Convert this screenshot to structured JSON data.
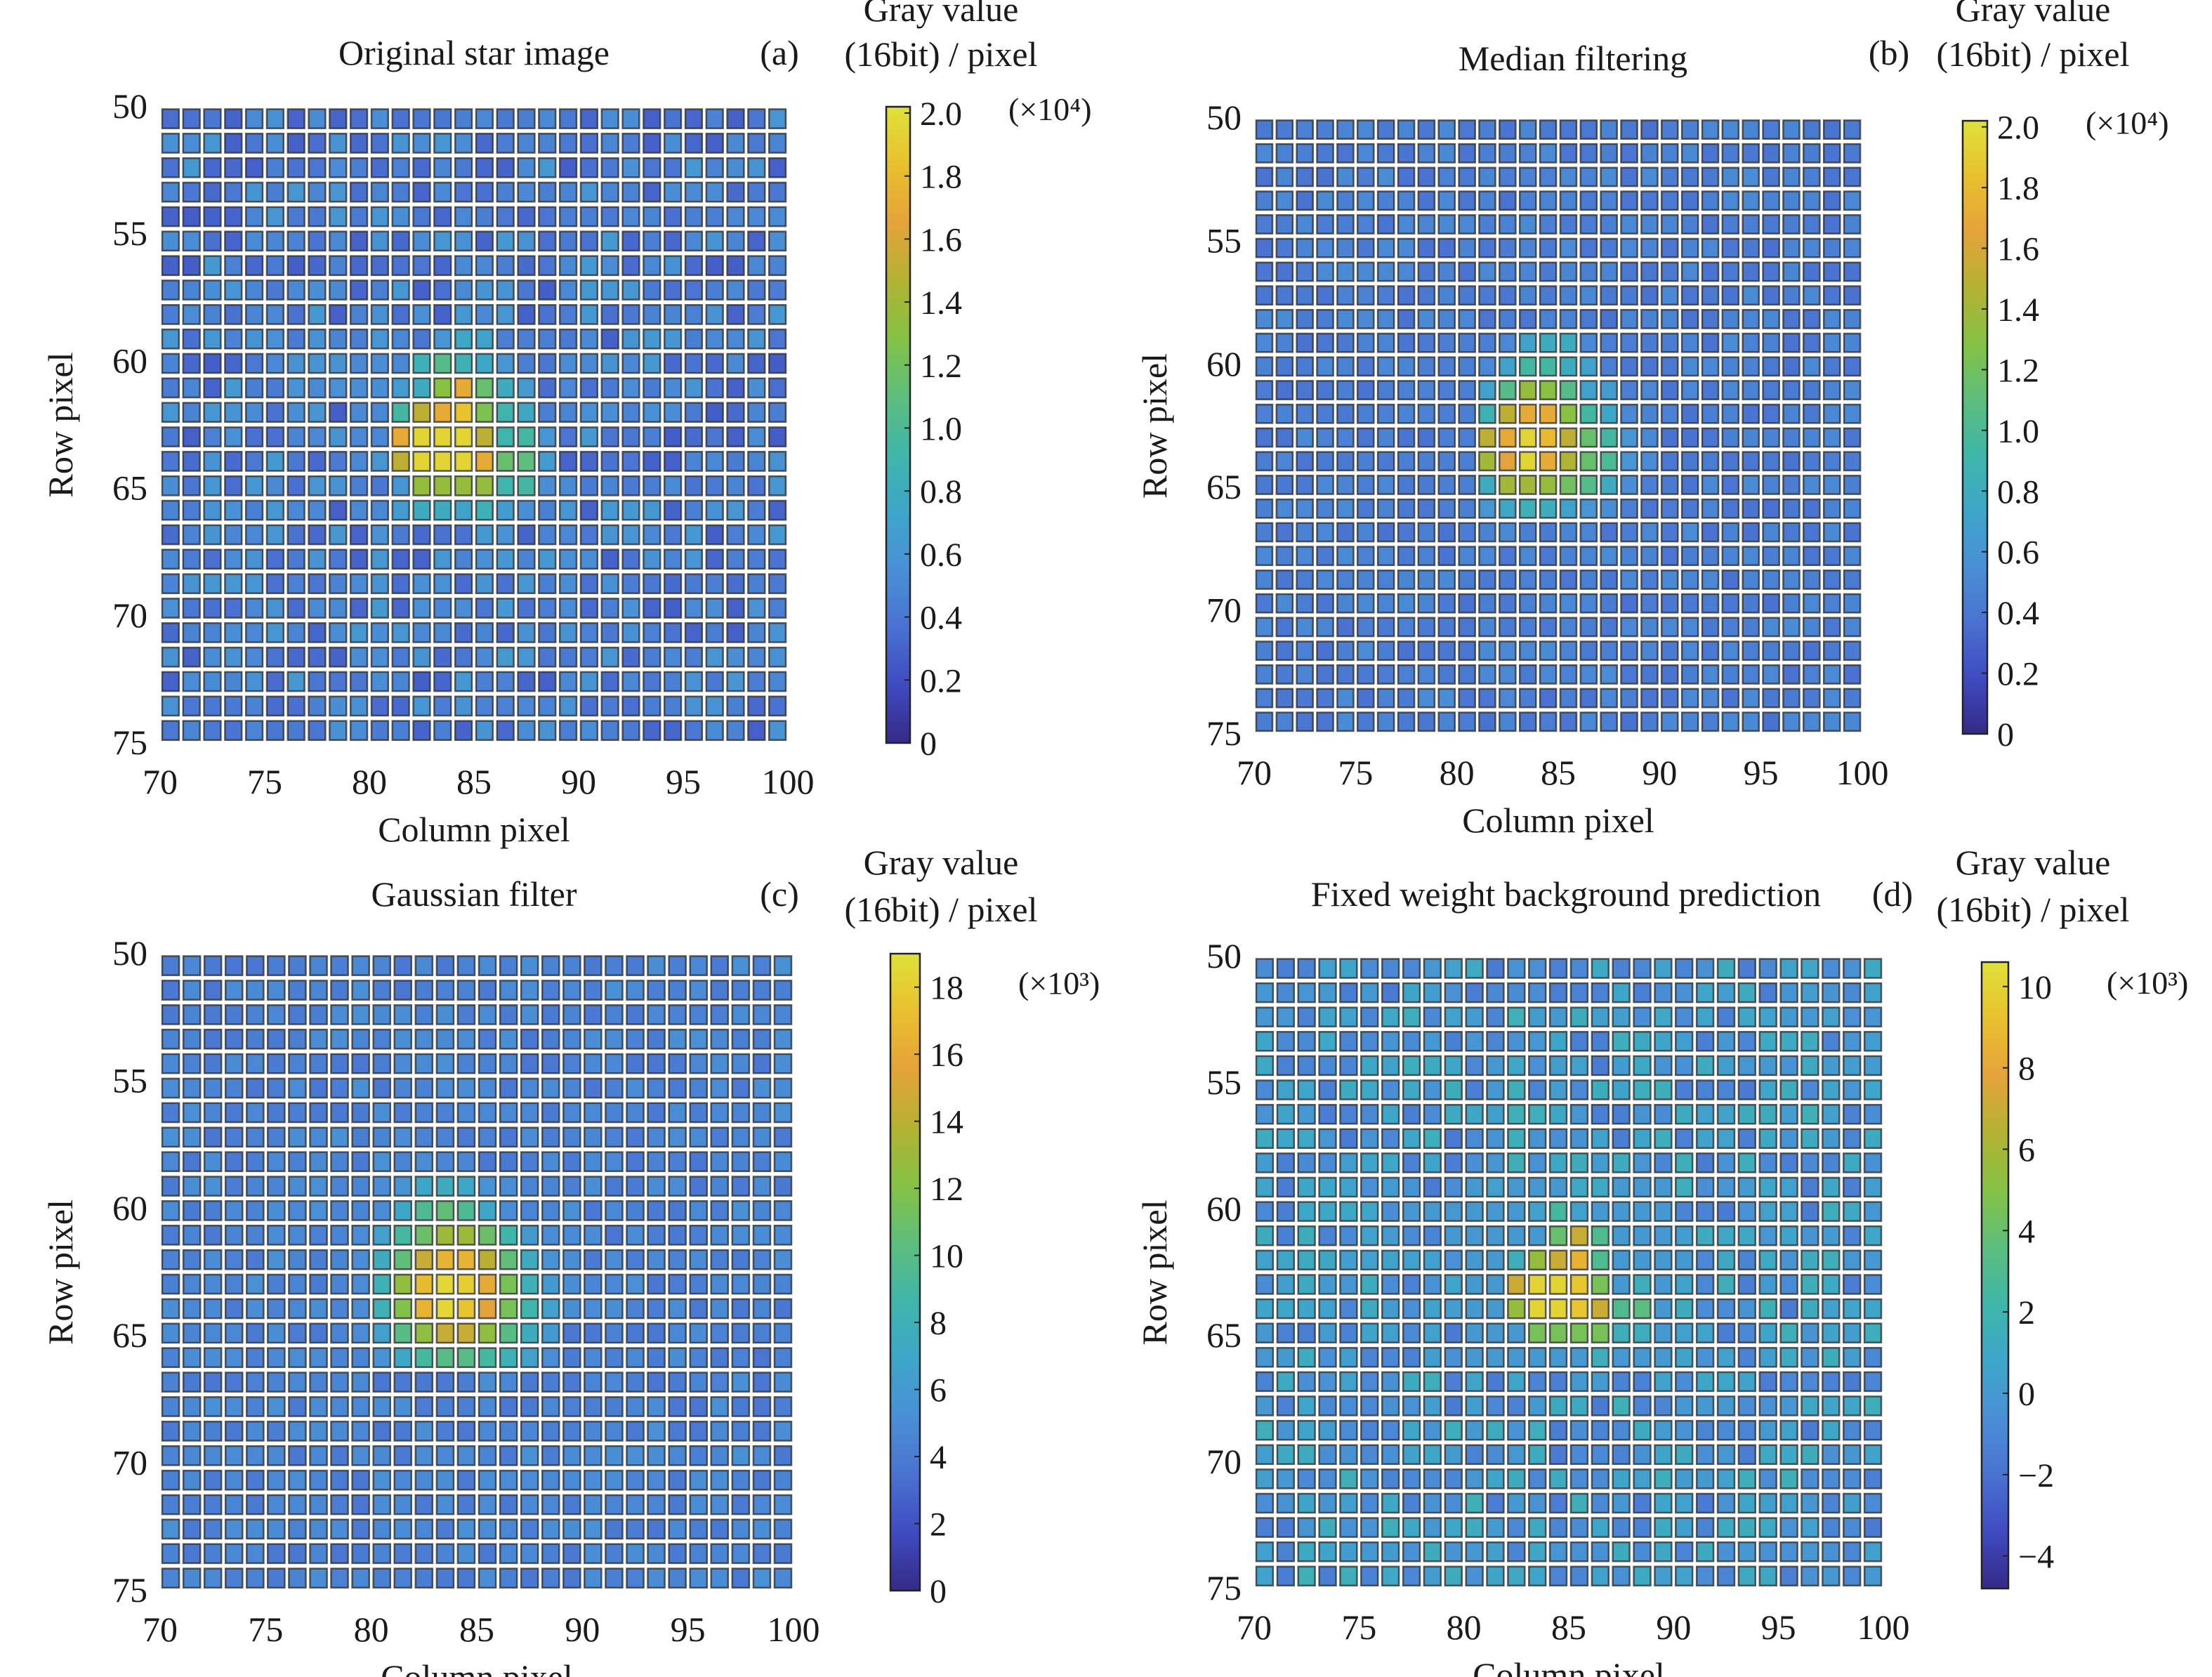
{
  "chart_data": [
    {
      "id": "a",
      "type": "heatmap",
      "title": "Original star image",
      "panel_label": "(a)",
      "xlabel": "Column pixel",
      "ylabel": "Row pixel",
      "xlim": [
        70,
        100
      ],
      "ylim": [
        50,
        75
      ],
      "xticks": [
        "70",
        "75",
        "80",
        "85",
        "90",
        "95",
        "100"
      ],
      "yticks": [
        "50",
        "55",
        "60",
        "65",
        "70",
        "75"
      ],
      "colorbar": {
        "label_line1": "Gray value",
        "label_line2": "(16bit) / pixel",
        "multiplier": "(×10⁴)",
        "range": [
          0,
          2.02
        ],
        "ticks": [
          "0",
          "0.2",
          "0.4",
          "0.6",
          "0.8",
          "1.0",
          "1.2",
          "1.4",
          "1.6",
          "1.8",
          "2.0"
        ],
        "tick_values": [
          0,
          0.2,
          0.4,
          0.6,
          0.8,
          1.0,
          1.2,
          1.4,
          1.6,
          1.8,
          2.0
        ]
      },
      "background": {
        "mean": 0.45,
        "spread": 0.18
      },
      "star": {
        "row_start": 59,
        "col_start": 79,
        "values": [
          [
            0.45,
            0.6,
            0.5,
            0.4,
            0.6,
            0.75,
            0.7,
            0.45,
            0.45,
            0.45
          ],
          [
            0.5,
            0.55,
            0.5,
            0.85,
            1.05,
            0.85,
            0.75,
            0.6,
            0.45,
            0.4
          ],
          [
            0.55,
            0.55,
            0.65,
            0.8,
            1.3,
            1.7,
            1.15,
            0.8,
            0.65,
            0.35
          ],
          [
            0.5,
            0.5,
            0.95,
            1.5,
            1.7,
            1.85,
            1.25,
            0.9,
            0.75,
            0.45
          ],
          [
            0.5,
            0.5,
            1.7,
            1.95,
            1.95,
            1.95,
            1.5,
            0.9,
            0.95,
            0.6
          ],
          [
            0.5,
            0.6,
            1.5,
            1.95,
            1.95,
            1.95,
            1.7,
            1.15,
            1.1,
            0.65
          ],
          [
            0.45,
            0.4,
            0.6,
            1.35,
            1.35,
            1.35,
            1.35,
            0.9,
            0.95,
            0.55
          ],
          [
            0.5,
            0.5,
            0.65,
            0.8,
            0.8,
            0.7,
            0.85,
            0.65,
            0.55,
            0.45
          ]
        ]
      }
    },
    {
      "id": "b",
      "type": "heatmap",
      "title": "Median filtering",
      "panel_label": "(b)",
      "xlabel": "Column pixel",
      "ylabel": "Row pixel",
      "xlim": [
        70,
        100
      ],
      "ylim": [
        50,
        75
      ],
      "xticks": [
        "70",
        "75",
        "80",
        "85",
        "90",
        "95",
        "100"
      ],
      "yticks": [
        "50",
        "55",
        "60",
        "65",
        "70",
        "75"
      ],
      "colorbar": {
        "label_line1": "Gray value",
        "label_line2": "(16bit) / pixel",
        "multiplier": "(×10⁴)",
        "range": [
          0,
          2.02
        ],
        "ticks": [
          "0",
          "0.2",
          "0.4",
          "0.6",
          "0.8",
          "1.0",
          "1.2",
          "1.4",
          "1.6",
          "1.8",
          "2.0"
        ],
        "tick_values": [
          0,
          0.2,
          0.4,
          0.6,
          0.8,
          1.0,
          1.2,
          1.4,
          1.6,
          1.8,
          2.0
        ]
      },
      "background": {
        "mean": 0.45,
        "spread": 0.08
      },
      "star": {
        "row_start": 59,
        "col_start": 79,
        "values": [
          [
            0.45,
            0.45,
            0.45,
            0.5,
            0.7,
            0.8,
            0.8,
            0.5,
            0.45,
            0.45
          ],
          [
            0.45,
            0.45,
            0.5,
            0.7,
            0.95,
            0.95,
            0.8,
            0.7,
            0.45,
            0.4
          ],
          [
            0.45,
            0.45,
            0.7,
            1.05,
            1.35,
            1.3,
            1.05,
            0.7,
            0.65,
            0.45
          ],
          [
            0.45,
            0.45,
            0.85,
            1.5,
            1.7,
            1.7,
            1.3,
            0.95,
            0.75,
            0.5
          ],
          [
            0.45,
            0.45,
            1.5,
            1.7,
            1.95,
            1.8,
            1.5,
            1.15,
            0.95,
            0.6
          ],
          [
            0.45,
            0.45,
            1.4,
            1.65,
            1.95,
            1.7,
            1.45,
            1.15,
            1.0,
            0.6
          ],
          [
            0.45,
            0.45,
            0.8,
            1.4,
            1.4,
            1.35,
            1.2,
            1.05,
            0.8,
            0.55
          ],
          [
            0.45,
            0.45,
            0.6,
            0.75,
            0.85,
            0.8,
            0.7,
            0.6,
            0.55,
            0.45
          ]
        ]
      }
    },
    {
      "id": "c",
      "type": "heatmap",
      "title": "Gaussian filter",
      "panel_label": "(c)",
      "xlabel": "Column pixel",
      "ylabel": "Row pixel",
      "xlim": [
        70,
        100
      ],
      "ylim": [
        50,
        75
      ],
      "xticks": [
        "70",
        "75",
        "80",
        "85",
        "90",
        "95",
        "100"
      ],
      "yticks": [
        "50",
        "55",
        "60",
        "65",
        "70",
        "75"
      ],
      "colorbar": {
        "label_line1": "Gray value",
        "label_line2": "(16bit) / pixel",
        "multiplier": "(×10³)",
        "range": [
          0,
          19
        ],
        "ticks": [
          "0",
          "2",
          "4",
          "6",
          "8",
          "10",
          "12",
          "14",
          "16",
          "18"
        ],
        "tick_values": [
          0,
          2,
          4,
          6,
          8,
          10,
          12,
          14,
          16,
          18
        ]
      },
      "background": {
        "mean": 4.5,
        "spread": 0.8
      },
      "star": {
        "row_start": 59,
        "col_start": 78,
        "values": [
          [
            4.5,
            4.5,
            5.0,
            5.5,
            7.0,
            7.5,
            7.0,
            5.5,
            5.0,
            4.5,
            4.5
          ],
          [
            4.5,
            4.5,
            5.0,
            7.0,
            9.5,
            10.5,
            9.5,
            7.0,
            5.0,
            4.5,
            4.5
          ],
          [
            4.5,
            5.0,
            6.5,
            9.0,
            11.0,
            13.0,
            13.0,
            11.0,
            8.5,
            6.0,
            5.0
          ],
          [
            4.5,
            5.0,
            7.5,
            10.5,
            14.5,
            16.5,
            16.5,
            14.0,
            10.5,
            7.5,
            5.5
          ],
          [
            4.5,
            5.0,
            8.0,
            12.5,
            17.0,
            18.5,
            18.0,
            16.0,
            11.5,
            8.0,
            6.0
          ],
          [
            4.5,
            5.0,
            8.0,
            12.0,
            16.5,
            18.5,
            17.5,
            15.5,
            11.5,
            8.5,
            6.5
          ],
          [
            4.5,
            5.0,
            6.5,
            10.0,
            12.5,
            14.5,
            14.5,
            12.5,
            10.0,
            7.5,
            6.0
          ],
          [
            4.5,
            4.5,
            5.5,
            7.0,
            9.0,
            10.0,
            10.0,
            9.0,
            8.0,
            6.5,
            5.0
          ]
        ]
      }
    },
    {
      "id": "d",
      "type": "heatmap",
      "title": "Fixed weight background prediction",
      "panel_label": "(d)",
      "xlabel": "Column pixel",
      "ylabel": "Row pixel",
      "xlim": [
        70,
        100
      ],
      "ylim": [
        50,
        75
      ],
      "xticks": [
        "70",
        "75",
        "80",
        "85",
        "90",
        "95",
        "100"
      ],
      "yticks": [
        "50",
        "55",
        "60",
        "65",
        "70",
        "75"
      ],
      "colorbar": {
        "label_line1": "Gray value",
        "label_line2": "(16bit) / pixel",
        "multiplier": "(×10³)",
        "range": [
          -4.8,
          10.6
        ],
        "ticks": [
          "−4",
          "−2",
          "0",
          "2",
          "4",
          "6",
          "8",
          "10"
        ],
        "tick_values": [
          -4,
          -2,
          0,
          2,
          4,
          6,
          8,
          10
        ]
      },
      "background": {
        "mean": 0.0,
        "spread": 1.6
      },
      "star": {
        "row_start": 59,
        "col_start": 80,
        "values": [
          [
            0.0,
            0.5,
            0.0,
            0.0,
            0.0,
            1.0,
            1.0,
            0.0,
            0.0,
            0.0
          ],
          [
            0.0,
            0.0,
            0.0,
            0.5,
            2.5,
            0.5,
            0.0,
            0.0,
            0.0,
            0.0
          ],
          [
            0.0,
            0.0,
            0.0,
            0.0,
            4.0,
            7.0,
            3.0,
            0.0,
            0.0,
            0.0
          ],
          [
            0.0,
            0.0,
            1.5,
            5.5,
            7.0,
            8.5,
            3.0,
            0.0,
            0.0,
            0.0
          ],
          [
            0.0,
            0.0,
            7.0,
            10.0,
            10.0,
            9.5,
            4.5,
            0.0,
            1.5,
            0.0
          ],
          [
            0.0,
            0.0,
            5.5,
            10.0,
            10.0,
            9.5,
            7.0,
            3.0,
            3.5,
            0.0
          ],
          [
            0.0,
            0.0,
            0.0,
            4.5,
            4.5,
            4.5,
            4.5,
            1.5,
            1.5,
            0.0
          ],
          [
            0.0,
            0.0,
            0.0,
            0.0,
            0.0,
            0.0,
            1.5,
            0.0,
            0.0,
            0.0
          ]
        ]
      }
    }
  ],
  "colormap": [
    "#352a87",
    "#3f4bc0",
    "#4a72d1",
    "#4a8fd6",
    "#3ea6c9",
    "#3fb6aa",
    "#5dbe7d",
    "#85c245",
    "#b4b232",
    "#e5a33a",
    "#e9c02e",
    "#dfe13a"
  ]
}
